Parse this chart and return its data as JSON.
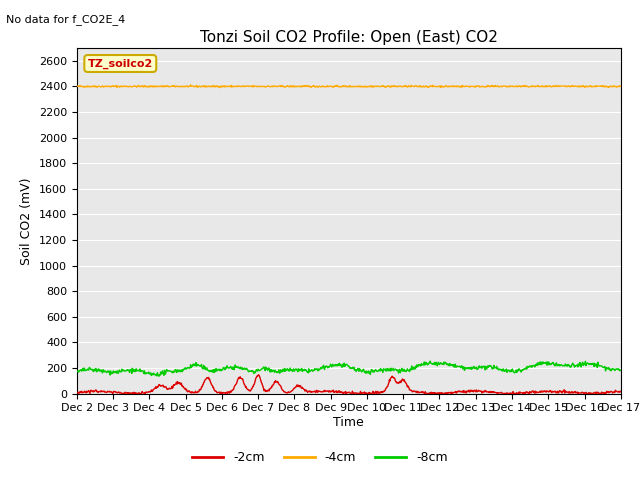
{
  "title": "Tonzi Soil CO2 Profile: Open (East) CO2",
  "no_data_text": "No data for f_CO2E_4",
  "ylabel": "Soil CO2 (mV)",
  "xlabel": "Time",
  "ylim": [
    0,
    2700
  ],
  "yticks": [
    0,
    200,
    400,
    600,
    800,
    1000,
    1200,
    1400,
    1600,
    1800,
    2000,
    2200,
    2400,
    2600
  ],
  "xtick_labels": [
    "Dec 2",
    "Dec 3",
    "Dec 4",
    "Dec 5",
    "Dec 6",
    "Dec 7",
    "Dec 8",
    "Dec 9",
    "Dec 10",
    "Dec 11",
    "Dec 12",
    "Dec 13",
    "Dec 14",
    "Dec 15",
    "Dec 16",
    "Dec 17"
  ],
  "legend_label_box": "TZ_soilco2",
  "legend_box_facecolor": "#ffffcc",
  "legend_box_edgecolor": "#ccaa00",
  "line_neg2cm_color": "#dd0000",
  "line_neg4cm_color": "#ffaa00",
  "line_neg8cm_color": "#00cc00",
  "line_neg4cm_value": 2400,
  "background_color": "#e8e8e8",
  "fig_background_color": "#ffffff",
  "grid_color": "#ffffff",
  "title_fontsize": 11,
  "label_fontsize": 9,
  "tick_fontsize": 8
}
